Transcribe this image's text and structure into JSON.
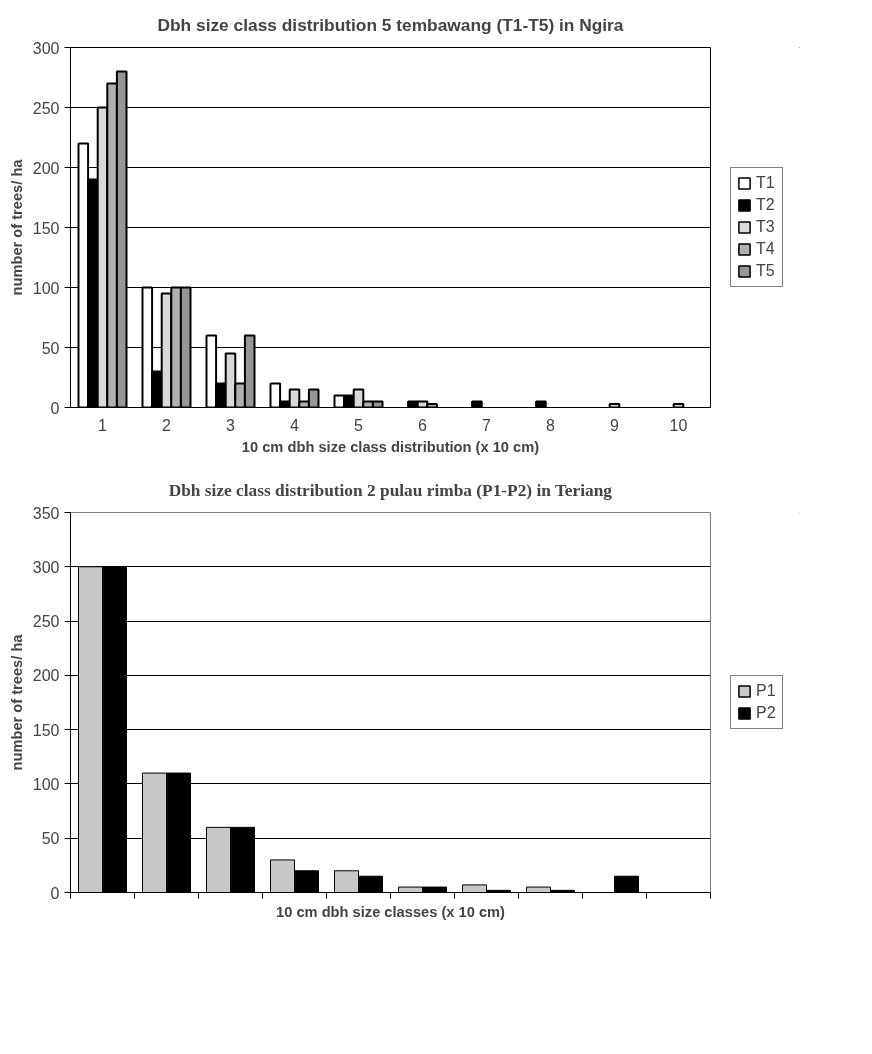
{
  "chart_data": [
    {
      "type": "bar",
      "title": "Dbh size class distribution 5 tembawang (T1-T5) in Ngira",
      "xlabel": "10 cm dbh size class distribution (x 10 cm)",
      "ylabel": "number of trees/ ha",
      "categories": [
        "1",
        "2",
        "3",
        "4",
        "5",
        "6",
        "7",
        "8",
        "9",
        "10"
      ],
      "series": [
        {
          "name": "T1",
          "color": "#ffffff",
          "values": [
            220,
            100,
            60,
            20,
            10,
            null,
            null,
            null,
            null,
            null
          ]
        },
        {
          "name": "T2",
          "color": "#000000",
          "values": [
            190,
            30,
            20,
            5,
            10,
            5,
            5,
            5,
            null,
            null
          ]
        },
        {
          "name": "T3",
          "color": "#d9d9d9",
          "values": [
            250,
            95,
            45,
            15,
            15,
            5,
            null,
            null,
            3,
            3
          ]
        },
        {
          "name": "T4",
          "color": "#b0b0b0",
          "values": [
            270,
            100,
            20,
            5,
            5,
            3,
            null,
            null,
            null,
            null
          ]
        },
        {
          "name": "T5",
          "color": "#969696",
          "values": [
            280,
            100,
            60,
            15,
            5,
            null,
            null,
            null,
            null,
            null
          ]
        }
      ],
      "ylim": [
        0,
        300
      ],
      "yticks": [
        0,
        50,
        100,
        150,
        200,
        250,
        300
      ],
      "grid": "y",
      "legend": "right"
    },
    {
      "type": "bar",
      "title": "Dbh size class distribution 2 pulau rimba (P1-P2) in Teriang",
      "xlabel": "10 cm dbh size classes (x 10 cm)",
      "ylabel": "number of trees/ ha",
      "categories": [
        null,
        null,
        null,
        null,
        null,
        null,
        null,
        null,
        null,
        null
      ],
      "series": [
        {
          "name": "P1",
          "color": "#c8c8c8",
          "values": [
            300,
            110,
            60,
            30,
            20,
            5,
            7,
            5,
            null,
            null
          ]
        },
        {
          "name": "P2",
          "color": "#000000",
          "values": [
            300,
            110,
            60,
            20,
            15,
            5,
            2,
            2,
            15,
            null
          ]
        }
      ],
      "ylim": [
        0,
        350
      ],
      "yticks": [
        0,
        50,
        100,
        150,
        200,
        250,
        300,
        350
      ],
      "grid": "y",
      "legend": "right"
    }
  ]
}
